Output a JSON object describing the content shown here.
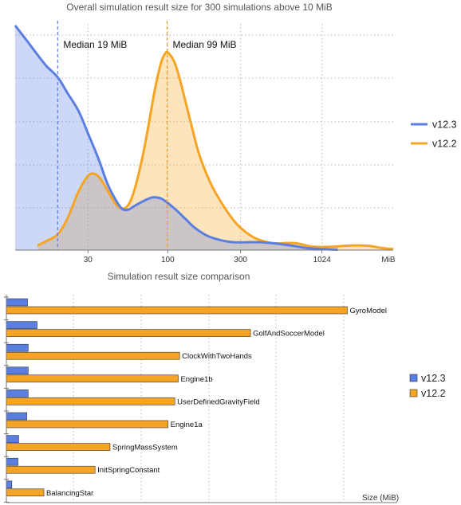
{
  "colors": {
    "v12_3": "#5b7fe0",
    "v12_2": "#f5a523",
    "grid": "#b8b8b8",
    "axis": "#777777"
  },
  "chart_data": [
    {
      "type": "area",
      "title": "Overall simulation result size for 300 simulations above 10 MiB",
      "x_scale": "log",
      "xlim": [
        10,
        3000
      ],
      "ylim": [
        0,
        1
      ],
      "x_ticks": [
        {
          "value": 30,
          "label": "30"
        },
        {
          "value": 100,
          "label": "100"
        },
        {
          "value": 300,
          "label": "300"
        },
        {
          "value": 1024,
          "label": "1024"
        }
      ],
      "x_unit_label": "MiB",
      "grid": true,
      "legend_position": "right",
      "legend": [
        "v12.3",
        "v12.2"
      ],
      "annotations": [
        {
          "x": 19,
          "label": "Median 19 MiB",
          "series": "v12.3"
        },
        {
          "x": 99,
          "label": "Median 99 MiB",
          "series": "v12.2"
        }
      ],
      "series": [
        {
          "name": "v12.3",
          "x": [
            10,
            12,
            14,
            16,
            19,
            22,
            26,
            30,
            35,
            40,
            45,
            50,
            55,
            60,
            70,
            80,
            90,
            100,
            115,
            130,
            150,
            180,
            220,
            270,
            330,
            400,
            500,
            650,
            800,
            1000,
            1300
          ],
          "y": [
            1.0,
            0.93,
            0.87,
            0.82,
            0.77,
            0.7,
            0.62,
            0.52,
            0.41,
            0.3,
            0.23,
            0.185,
            0.18,
            0.195,
            0.22,
            0.235,
            0.23,
            0.21,
            0.175,
            0.14,
            0.1,
            0.065,
            0.045,
            0.035,
            0.035,
            0.035,
            0.03,
            0.02,
            0.01,
            0.005,
            0.002
          ]
        },
        {
          "name": "v12.2",
          "x": [
            14,
            16,
            19,
            22,
            26,
            30,
            33,
            36,
            40,
            45,
            50,
            55,
            60,
            65,
            70,
            75,
            80,
            85,
            90,
            95,
            100,
            110,
            120,
            140,
            160,
            190,
            230,
            280,
            340,
            400,
            500,
            600,
            700,
            900,
            1200,
            1500,
            2000,
            2500,
            3000
          ],
          "y": [
            0.02,
            0.04,
            0.07,
            0.14,
            0.26,
            0.33,
            0.34,
            0.32,
            0.27,
            0.21,
            0.185,
            0.2,
            0.26,
            0.35,
            0.45,
            0.56,
            0.67,
            0.76,
            0.83,
            0.87,
            0.88,
            0.84,
            0.76,
            0.58,
            0.43,
            0.3,
            0.2,
            0.12,
            0.07,
            0.045,
            0.03,
            0.032,
            0.03,
            0.015,
            0.015,
            0.02,
            0.02,
            0.01,
            0.005
          ]
        }
      ]
    },
    {
      "type": "bar",
      "orientation": "horizontal",
      "title": "Simulation result size comparison",
      "xlabel": "Size (MiB)",
      "xlim": [
        0,
        650
      ],
      "grid": true,
      "legend_position": "right",
      "legend": [
        "v12.3",
        "v12.2"
      ],
      "categories": [
        "GyroModel",
        "GolfAndSoccerModel",
        "ClockWithTwoHands",
        "Engine1b",
        "UserDefinedGravityField",
        "Engine1a",
        "SpringMassSystem",
        "InitSpringConstant",
        "BalancingStar"
      ],
      "series": [
        {
          "name": "v12.3",
          "values": [
            31,
            45,
            32,
            32,
            32,
            30,
            18,
            17,
            8
          ]
        },
        {
          "name": "v12.2",
          "values": [
            500,
            358,
            254,
            252,
            247,
            237,
            152,
            130,
            55
          ]
        }
      ]
    }
  ]
}
